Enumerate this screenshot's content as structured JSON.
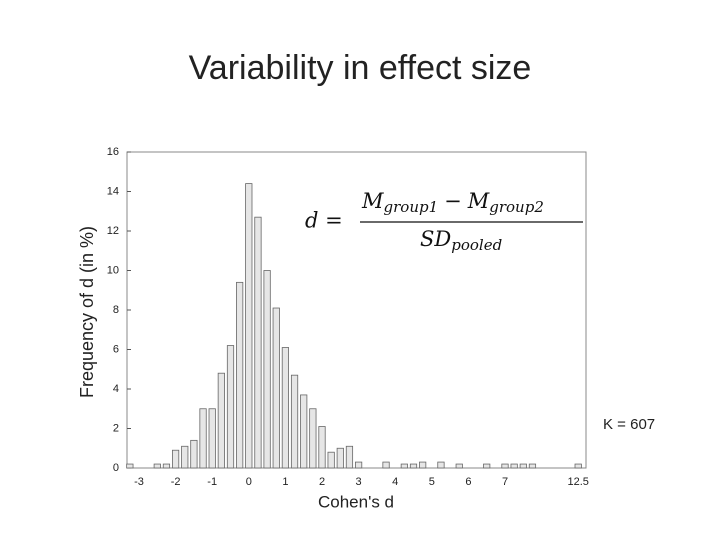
{
  "chart_data": {
    "type": "bar",
    "title": "Variability in effect size",
    "x_label": "Cohen's d",
    "y_label": "Frequency of d (in %)",
    "formula": {
      "lhs": "d =",
      "num_1": "M",
      "num_1_sub": "group1",
      "minus": "−",
      "num_2": "M",
      "num_2_sub": "group2",
      "den": "SD",
      "den_sub": "pooled"
    },
    "note": "K = 607",
    "categories": [
      null,
      "-3",
      null,
      null,
      null,
      "-2",
      null,
      null,
      null,
      "-1",
      null,
      null,
      null,
      "0",
      null,
      null,
      null,
      "1",
      null,
      null,
      null,
      "2",
      null,
      null,
      null,
      "3",
      null,
      null,
      null,
      "4",
      null,
      null,
      null,
      "5",
      null,
      null,
      null,
      "6",
      null,
      null,
      null,
      "7",
      null,
      null,
      null,
      null,
      null,
      null,
      null,
      "12.5"
    ],
    "values": [
      0.2,
      0,
      0,
      0.2,
      0.2,
      0.9,
      1.1,
      1.4,
      3.0,
      3.0,
      4.8,
      6.2,
      9.4,
      14.4,
      12.7,
      10.0,
      8.1,
      6.1,
      4.7,
      3.7,
      3.0,
      2.1,
      0.8,
      1.0,
      1.1,
      0.3,
      0,
      0,
      0.3,
      0,
      0.2,
      0.2,
      0.3,
      0,
      0.3,
      0,
      0.2,
      0,
      0,
      0.2,
      0,
      0.2,
      0.2,
      0.2,
      0.2,
      0,
      0,
      0,
      0,
      0.2
    ],
    "color": "#e6e6e6",
    "ylim": [
      0,
      16
    ],
    "yticks": [
      0,
      2,
      4,
      6,
      8,
      10,
      12,
      14,
      16
    ],
    "grid": false
  }
}
